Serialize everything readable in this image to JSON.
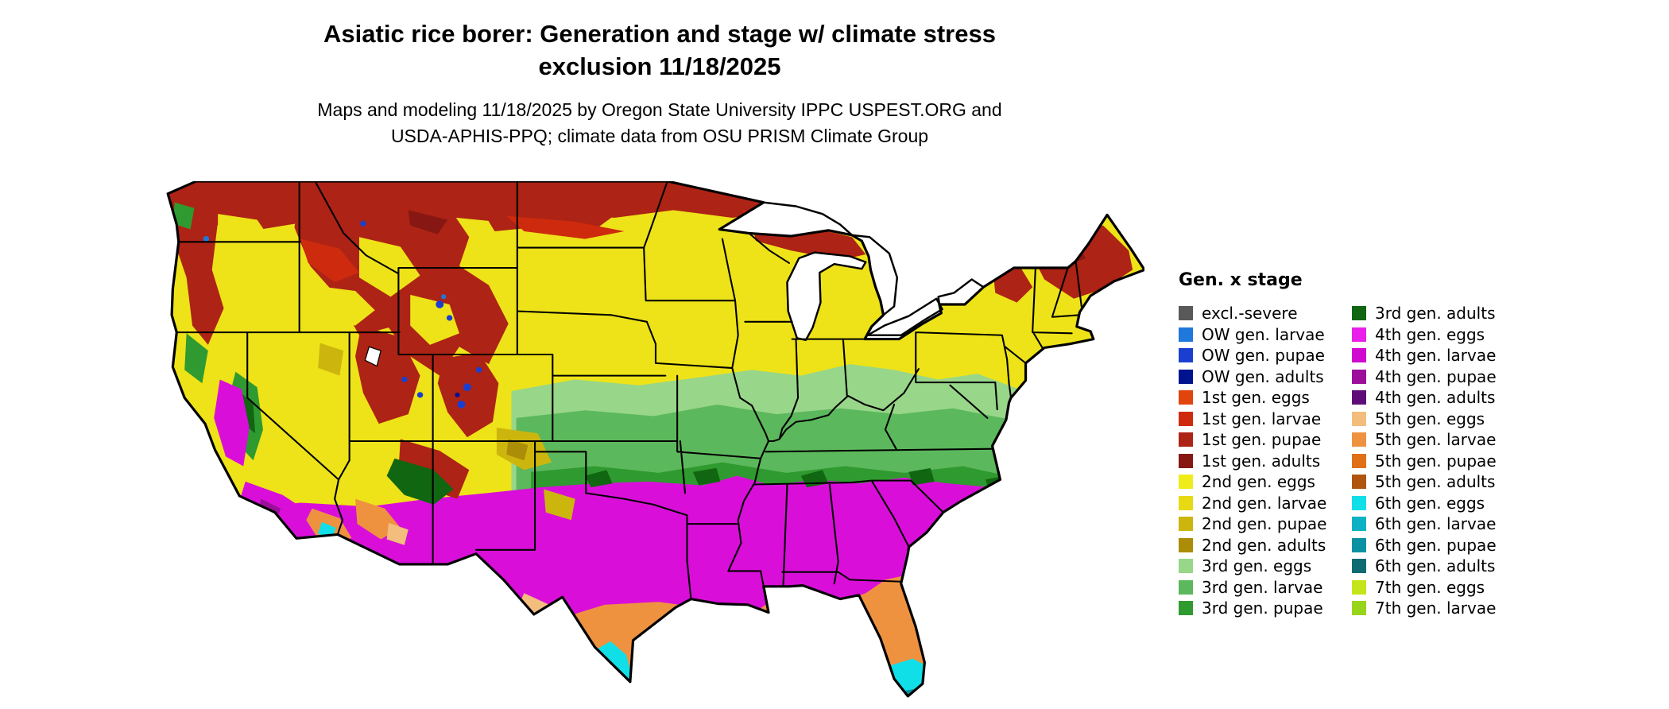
{
  "header": {
    "title_line1": "Asiatic rice borer: Generation and stage w/ climate stress",
    "title_line2": "exclusion 11/18/2025",
    "subtitle_line1": "Maps and modeling 11/18/2025 by Oregon State University IPPC USPEST.ORG and",
    "subtitle_line2": "USDA-APHIS-PPQ; climate data from OSU PRISM Climate Group"
  },
  "legend": {
    "title": "Gen. x stage",
    "columns": [
      {
        "items": [
          {
            "label": "excl.-severe",
            "color": "#595959"
          },
          {
            "label": "OW gen. larvae",
            "color": "#1f78dc"
          },
          {
            "label": "OW gen. pupae",
            "color": "#1a3fd0"
          },
          {
            "label": "OW gen. adults",
            "color": "#00138e"
          },
          {
            "label": "1st gen. eggs",
            "color": "#e2440e"
          },
          {
            "label": "1st gen. larvae",
            "color": "#cd2a0e"
          },
          {
            "label": "1st gen. pupae",
            "color": "#ad2315"
          },
          {
            "label": "1st gen. adults",
            "color": "#871712"
          },
          {
            "label": "2nd gen. eggs",
            "color": "#f0ec1a"
          },
          {
            "label": "2nd gen. larvae",
            "color": "#e8da12"
          },
          {
            "label": "2nd gen. pupae",
            "color": "#ccb60e"
          },
          {
            "label": "2nd gen. adults",
            "color": "#ab8d08"
          },
          {
            "label": "3rd gen. eggs",
            "color": "#98d689"
          },
          {
            "label": "3rd gen. larvae",
            "color": "#5cb85c"
          },
          {
            "label": "3rd gen. pupae",
            "color": "#2f9a2f"
          }
        ]
      },
      {
        "items": [
          {
            "label": "3rd gen. adults",
            "color": "#116611"
          },
          {
            "label": "4th gen. eggs",
            "color": "#ea1fea"
          },
          {
            "label": "4th gen. larvae",
            "color": "#d008d0"
          },
          {
            "label": "4th gen. pupae",
            "color": "#9b0f9b"
          },
          {
            "label": "4th gen. adults",
            "color": "#5e0d78"
          },
          {
            "label": "5th gen. eggs",
            "color": "#f3bd7e"
          },
          {
            "label": "5th gen. larvae",
            "color": "#ef9240"
          },
          {
            "label": "5th gen. pupae",
            "color": "#e07018"
          },
          {
            "label": "5th gen. adults",
            "color": "#b05510"
          },
          {
            "label": "6th gen. eggs",
            "color": "#10dfe8"
          },
          {
            "label": "6th gen. larvae",
            "color": "#0cb2c4"
          },
          {
            "label": "6th gen. pupae",
            "color": "#0a92a2"
          },
          {
            "label": "6th gen. adults",
            "color": "#0e6b74"
          },
          {
            "label": "7th gen. eggs",
            "color": "#c4e51c"
          },
          {
            "label": "7th gen. larvae",
            "color": "#98d41a"
          }
        ]
      }
    ]
  }
}
